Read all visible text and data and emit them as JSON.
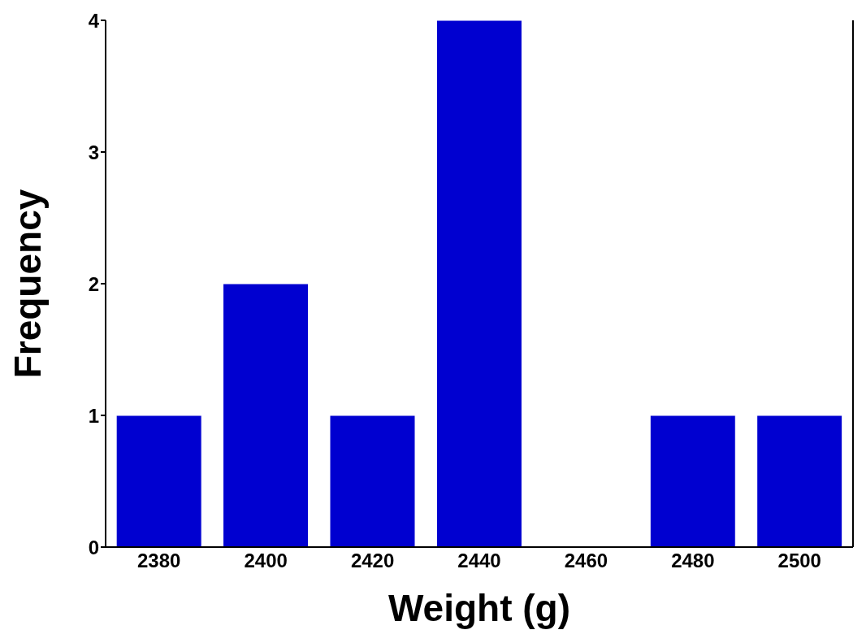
{
  "chart_data": {
    "type": "bar",
    "xlabel": "Weight (g)",
    "ylabel": "Frequency",
    "categories": [
      "2380",
      "2400",
      "2420",
      "2440",
      "2460",
      "2480",
      "2500"
    ],
    "values": [
      1,
      2,
      1,
      4,
      0,
      1,
      1
    ],
    "color": "#0000d0",
    "ylim": [
      0,
      4
    ],
    "yticks": [
      0,
      1,
      2,
      3,
      4
    ],
    "grid": false,
    "legend": false
  }
}
